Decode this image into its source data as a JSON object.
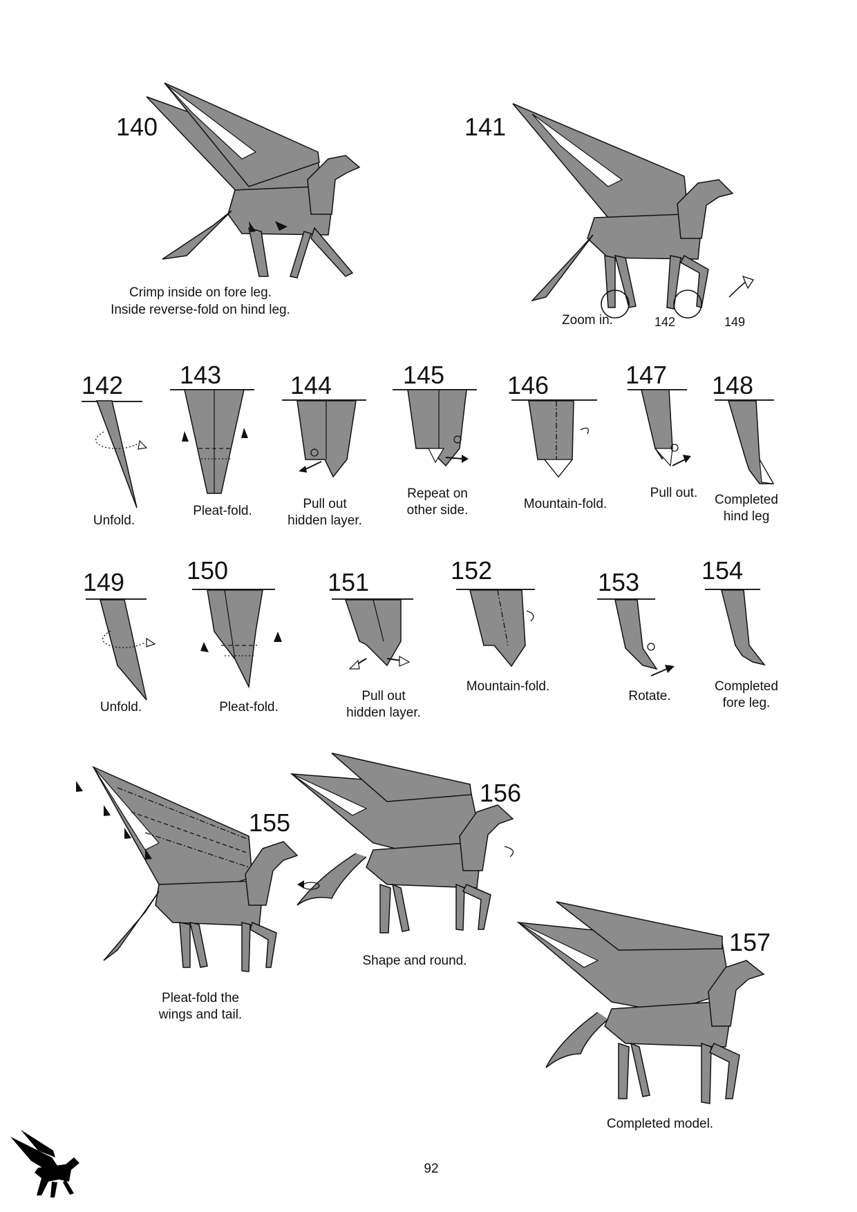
{
  "page_number": "92",
  "colors": {
    "paper": "#8c8c8c",
    "paper_dark": "#6f6f6f",
    "line": "#111111",
    "white": "#ffffff"
  },
  "steps": {
    "s140": {
      "number": "140",
      "caption_1": "Crimp inside on fore leg.",
      "caption_2": "Inside reverse-fold on hind leg."
    },
    "s141": {
      "number": "141",
      "caption": "Zoom in.",
      "callout_a": "142",
      "callout_b": "149"
    },
    "s142": {
      "number": "142",
      "caption": "Unfold."
    },
    "s143": {
      "number": "143",
      "caption": "Pleat-fold."
    },
    "s144": {
      "number": "144",
      "caption_1": "Pull out",
      "caption_2": "hidden layer."
    },
    "s145": {
      "number": "145",
      "caption_1": "Repeat on",
      "caption_2": "other side."
    },
    "s146": {
      "number": "146",
      "caption": "Mountain-fold."
    },
    "s147": {
      "number": "147",
      "caption": "Pull out."
    },
    "s148": {
      "number": "148",
      "caption_1": "Completed",
      "caption_2": "hind leg"
    },
    "s149": {
      "number": "149",
      "caption": "Unfold."
    },
    "s150": {
      "number": "150",
      "caption": "Pleat-fold."
    },
    "s151": {
      "number": "151",
      "caption_1": "Pull out",
      "caption_2": "hidden layer."
    },
    "s152": {
      "number": "152",
      "caption": "Mountain-fold."
    },
    "s153": {
      "number": "153",
      "caption": "Rotate."
    },
    "s154": {
      "number": "154",
      "caption_1": "Completed",
      "caption_2": "fore leg."
    },
    "s155": {
      "number": "155",
      "caption_1": "Pleat-fold the",
      "caption_2": "wings and tail."
    },
    "s156": {
      "number": "156",
      "caption": "Shape and round."
    },
    "s157": {
      "number": "157",
      "caption": "Completed model."
    }
  },
  "icons": {
    "logo": "pegasus-logo-icon",
    "valley_arrow": "arrow-icon",
    "rotate": "rotate-arrow-icon"
  }
}
